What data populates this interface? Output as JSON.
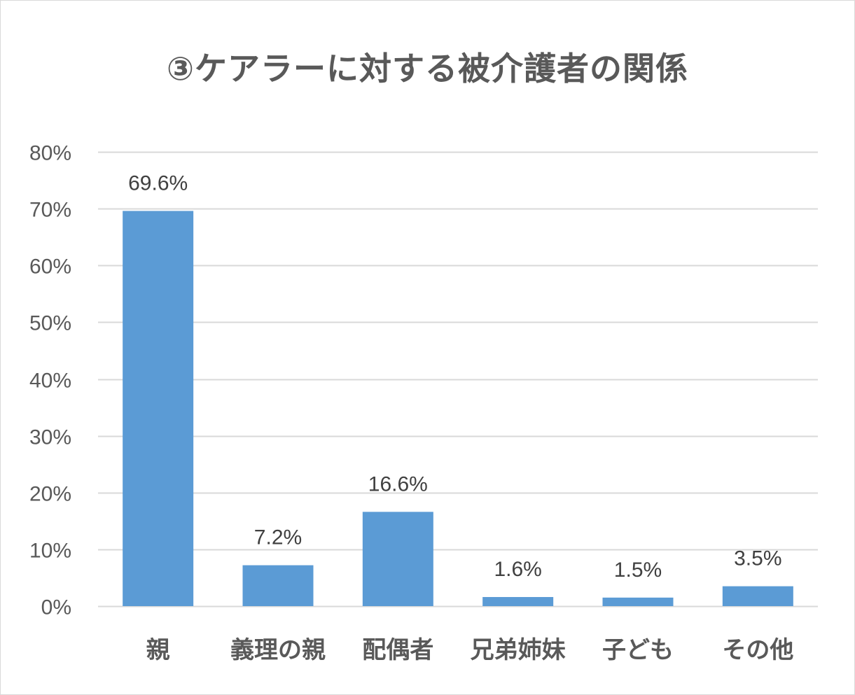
{
  "chart_data": {
    "type": "bar",
    "title": "③ケアラーに対する被介護者の関係",
    "xlabel": "",
    "ylabel": "",
    "categories": [
      "親",
      "義理の親",
      "配偶者",
      "兄弟姉妹",
      "子ども",
      "その他"
    ],
    "values": [
      69.6,
      7.2,
      16.6,
      1.6,
      1.5,
      3.5
    ],
    "data_labels": [
      "69.6%",
      "7.2%",
      "16.6%",
      "1.6%",
      "1.5%",
      "3.5%"
    ],
    "ylim": [
      0,
      80
    ],
    "yticks": [
      0,
      10,
      20,
      30,
      40,
      50,
      60,
      70,
      80
    ],
    "ytick_labels": [
      "0%",
      "10%",
      "20%",
      "30%",
      "40%",
      "50%",
      "60%",
      "70%",
      "80%"
    ],
    "grid": true,
    "legend": "none",
    "bar_color": "#5b9bd5",
    "grid_color": "#d9d9d9"
  }
}
